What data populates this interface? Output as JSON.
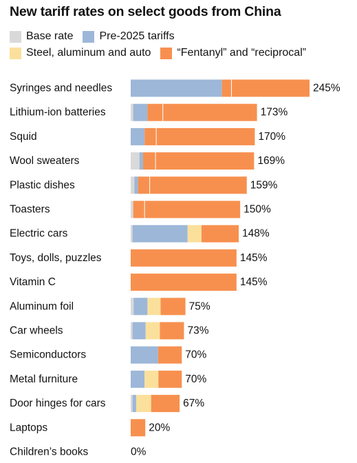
{
  "chart_data": {
    "type": "bar",
    "orientation": "horizontal",
    "stacked": true,
    "title": "New tariff rates on select goods from China",
    "legend": [
      {
        "name": "Base rate",
        "color": "#d9d9d9"
      },
      {
        "name": "Pre-2025 tariffs",
        "color": "#9db7d8"
      },
      {
        "name": "Steel, aluminum and auto",
        "color": "#fbe09c"
      },
      {
        "name": "“Fentanyl” and “reciprocal”",
        "color": "#f7904f"
      }
    ],
    "categories": [
      "Syringes and needles",
      "Lithium-ion batteries",
      "Squid",
      "Wool sweaters",
      "Plastic dishes",
      "Toasters",
      "Electric cars",
      "Toys, dolls, puzzles",
      "Vitamin C",
      "Aluminum foil",
      "Car wheels",
      "Semiconductors",
      "Metal furniture",
      "Door hinges for cars",
      "Laptops",
      "Children’s books"
    ],
    "series": [
      {
        "name": "Base rate",
        "values": [
          0,
          3.4,
          0,
          12,
          5,
          3.5,
          2.5,
          0,
          0,
          4,
          2.5,
          0,
          0,
          2.5,
          0,
          0
        ]
      },
      {
        "name": "Pre-2025 tariffs",
        "values": [
          125,
          19.6,
          19,
          5,
          5,
          0,
          75.5,
          0,
          0,
          19,
          18,
          37.5,
          19,
          5,
          0,
          0
        ]
      },
      {
        "name": "Steel, aluminum and auto",
        "values": [
          0,
          0,
          0,
          0,
          0,
          0,
          19,
          0,
          0,
          18,
          19.5,
          0,
          19,
          20.5,
          0,
          0
        ]
      },
      {
        "name": "“Fentanyl” and “reciprocal”",
        "values": [
          120,
          150,
          151,
          152,
          149,
          146.5,
          51,
          145,
          145,
          34,
          33,
          32.5,
          32,
          39,
          20,
          0
        ]
      }
    ],
    "segment_dividers": [
      [
        138
      ],
      [
        44
      ],
      [
        35
      ],
      [
        34
      ],
      [
        26
      ],
      [
        19
      ],
      [],
      [],
      [],
      [],
      [],
      [],
      [],
      [],
      [],
      []
    ],
    "totals": [
      245,
      173,
      170,
      169,
      159,
      150,
      148,
      145,
      145,
      75,
      73,
      70,
      70,
      67,
      20,
      0
    ],
    "total_labels": [
      "245%",
      "173%",
      "170%",
      "169%",
      "159%",
      "150%",
      "148%",
      "145%",
      "145%",
      "75%",
      "73%",
      "70%",
      "70%",
      "67%",
      "20%",
      "0%"
    ],
    "xlim": [
      0,
      245
    ],
    "grid": false
  }
}
